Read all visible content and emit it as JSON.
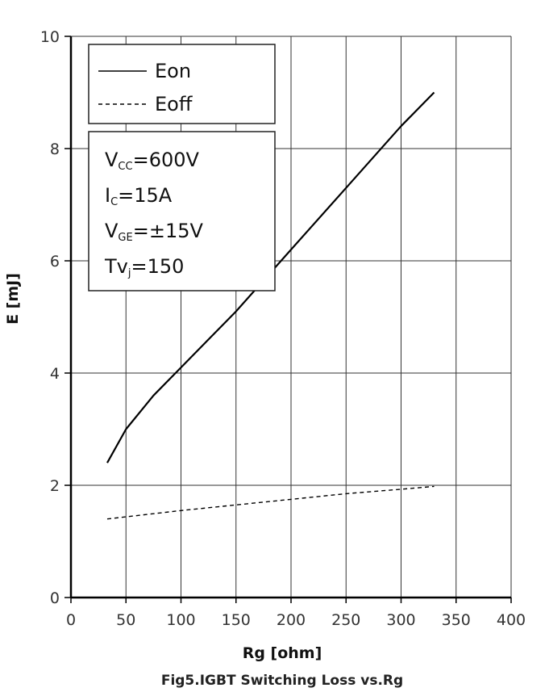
{
  "chart_data": {
    "type": "line",
    "title": "Fig5.IGBT Switching Loss vs.Rg",
    "xlabel": "Rg  [ohm]",
    "ylabel": "E  [mJ]",
    "xlim": [
      0,
      400
    ],
    "ylim": [
      0,
      10
    ],
    "xticks": [
      0,
      50,
      100,
      150,
      200,
      250,
      300,
      350,
      400
    ],
    "yticks": [
      0,
      2,
      4,
      6,
      8,
      10
    ],
    "grid": true,
    "legend_position": "top-left",
    "series": [
      {
        "name": "Eon",
        "style": "solid",
        "color": "#000000",
        "x": [
          33,
          50,
          75,
          100,
          150,
          200,
          250,
          300,
          330
        ],
        "y": [
          2.4,
          3.0,
          3.6,
          4.1,
          5.1,
          6.2,
          7.3,
          8.4,
          9.0
        ]
      },
      {
        "name": "Eoff",
        "style": "dashed",
        "color": "#000000",
        "x": [
          33,
          100,
          150,
          200,
          250,
          300,
          330
        ],
        "y": [
          1.4,
          1.55,
          1.65,
          1.75,
          1.85,
          1.93,
          1.98
        ]
      }
    ],
    "conditions": [
      {
        "main": "V",
        "sub": "CC",
        "rest": "=600V"
      },
      {
        "main": "I",
        "sub": "C",
        "rest": "=15A"
      },
      {
        "main": "V",
        "sub": "GE",
        "rest": "=±15V"
      },
      {
        "main": "Tv",
        "sub": "j",
        "rest": "=150"
      }
    ]
  }
}
